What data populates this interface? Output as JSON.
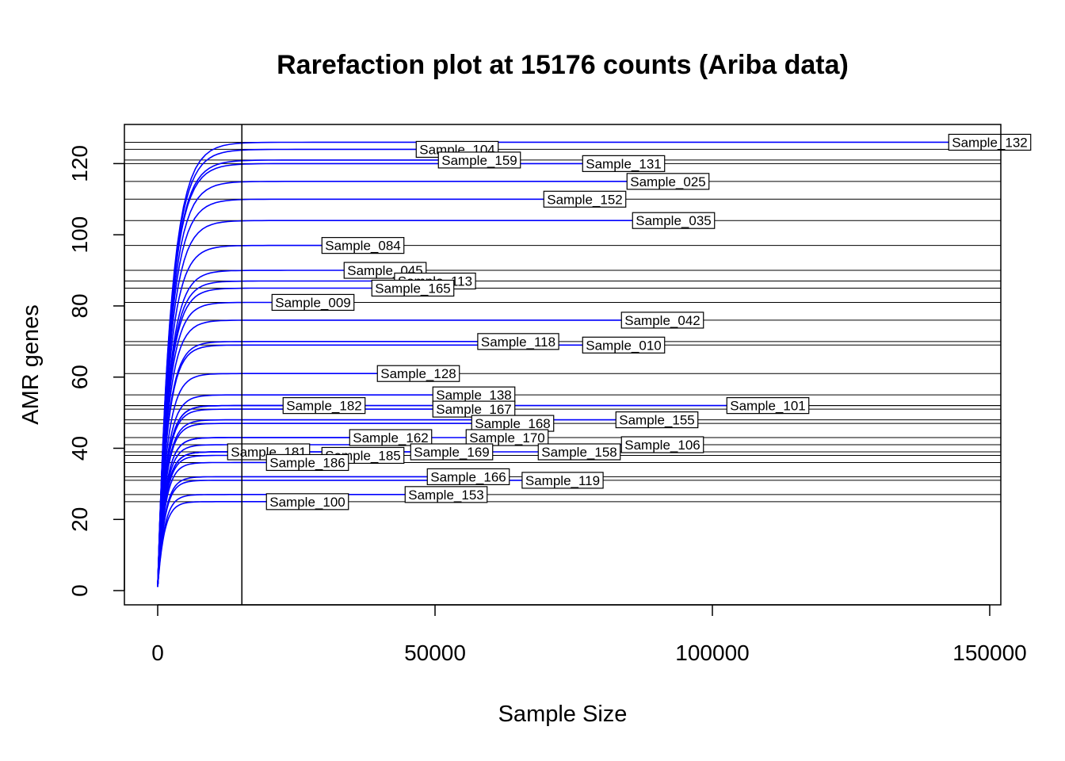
{
  "chart_data": {
    "type": "line",
    "title": "Rarefaction plot at 15176 counts (Ariba data)",
    "xlabel": "Sample Size",
    "ylabel": "AMR genes",
    "xlim": [
      -6000,
      152000
    ],
    "ylim": [
      -4,
      131
    ],
    "x_ticks": [
      0,
      50000,
      100000,
      150000
    ],
    "x_tick_labels": [
      "0",
      "50000",
      "100000",
      "150000"
    ],
    "y_ticks": [
      0,
      20,
      40,
      60,
      80,
      100,
      120
    ],
    "y_tick_labels": [
      "0",
      "20",
      "40",
      "60",
      "80",
      "100",
      "120"
    ],
    "rarefaction_depth": 15176,
    "curve_color": "#0000ff",
    "grid": false,
    "legend": "none",
    "series": [
      {
        "name": "Sample_132",
        "max_reads": 150000,
        "richness": 126
      },
      {
        "name": "Sample_104",
        "max_reads": 54000,
        "richness": 124
      },
      {
        "name": "Sample_159",
        "max_reads": 58000,
        "richness": 121
      },
      {
        "name": "Sample_131",
        "max_reads": 84000,
        "richness": 120
      },
      {
        "name": "Sample_025",
        "max_reads": 92000,
        "richness": 115
      },
      {
        "name": "Sample_152",
        "max_reads": 77000,
        "richness": 110
      },
      {
        "name": "Sample_035",
        "max_reads": 93000,
        "richness": 104
      },
      {
        "name": "Sample_084",
        "max_reads": 37000,
        "richness": 97
      },
      {
        "name": "Sample_045",
        "max_reads": 41000,
        "richness": 90
      },
      {
        "name": "Sample_113",
        "max_reads": 50000,
        "richness": 87
      },
      {
        "name": "Sample_165",
        "max_reads": 46000,
        "richness": 85
      },
      {
        "name": "Sample_009",
        "max_reads": 28000,
        "richness": 81
      },
      {
        "name": "Sample_042",
        "max_reads": 91000,
        "richness": 76
      },
      {
        "name": "Sample_118",
        "max_reads": 65000,
        "richness": 70
      },
      {
        "name": "Sample_010",
        "max_reads": 84000,
        "richness": 69
      },
      {
        "name": "Sample_128",
        "max_reads": 47000,
        "richness": 61
      },
      {
        "name": "Sample_138",
        "max_reads": 57000,
        "richness": 55
      },
      {
        "name": "Sample_101",
        "max_reads": 110000,
        "richness": 52
      },
      {
        "name": "Sample_182",
        "max_reads": 30000,
        "richness": 52
      },
      {
        "name": "Sample_167",
        "max_reads": 57000,
        "richness": 51
      },
      {
        "name": "Sample_155",
        "max_reads": 90000,
        "richness": 48
      },
      {
        "name": "Sample_168",
        "max_reads": 64000,
        "richness": 47
      },
      {
        "name": "Sample_162",
        "max_reads": 42000,
        "richness": 43
      },
      {
        "name": "Sample_170",
        "max_reads": 63000,
        "richness": 43
      },
      {
        "name": "Sample_106",
        "max_reads": 91000,
        "richness": 41
      },
      {
        "name": "Sample_181",
        "max_reads": 20000,
        "richness": 39
      },
      {
        "name": "Sample_185",
        "max_reads": 37000,
        "richness": 38
      },
      {
        "name": "Sample_169",
        "max_reads": 53000,
        "richness": 39
      },
      {
        "name": "Sample_158",
        "max_reads": 76000,
        "richness": 39
      },
      {
        "name": "Sample_186",
        "max_reads": 27000,
        "richness": 36
      },
      {
        "name": "Sample_166",
        "max_reads": 56000,
        "richness": 32
      },
      {
        "name": "Sample_119",
        "max_reads": 73000,
        "richness": 31
      },
      {
        "name": "Sample_153",
        "max_reads": 52000,
        "richness": 27
      },
      {
        "name": "Sample_100",
        "max_reads": 27000,
        "richness": 25
      }
    ]
  }
}
